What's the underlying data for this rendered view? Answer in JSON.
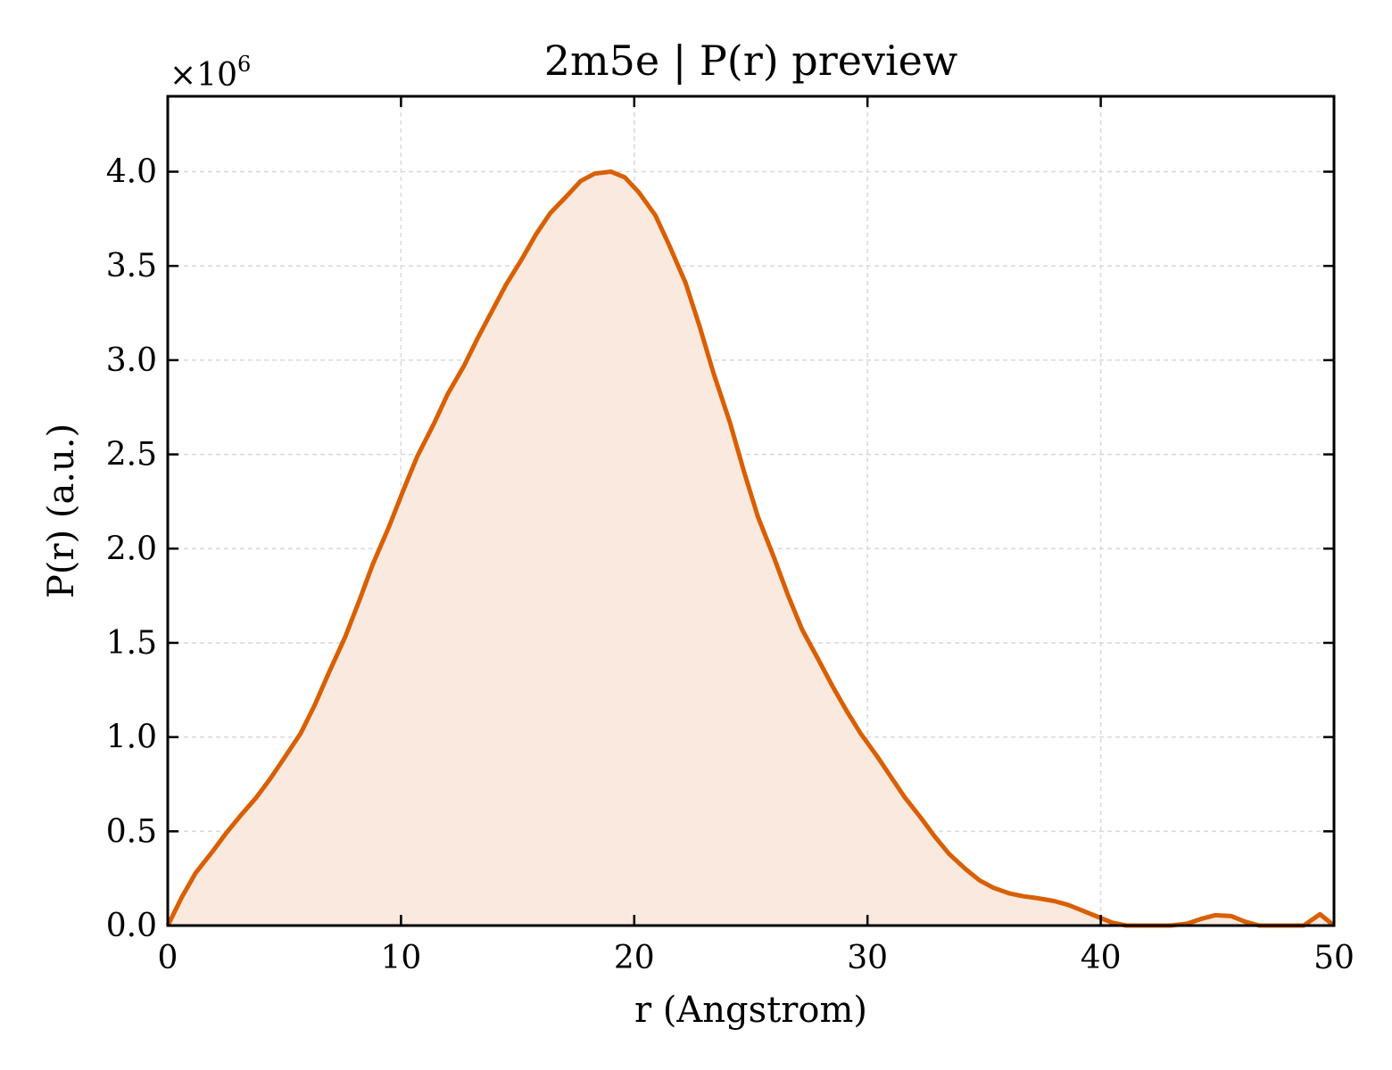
{
  "chart_data": {
    "type": "area",
    "title": "2m5e | P(r) preview",
    "xlabel": "r (Angstrom)",
    "ylabel": "P(r) (a.u.)",
    "y_offset_text": "×10",
    "y_offset_exponent": "6",
    "y_scale": 1000000,
    "xlim": [
      0,
      50
    ],
    "ylim": [
      0,
      4.4
    ],
    "x_ticks": [
      0,
      10,
      20,
      30,
      40,
      50
    ],
    "x_tick_labels": [
      "0",
      "10",
      "20",
      "30",
      "40",
      "50"
    ],
    "y_ticks": [
      0,
      0.5,
      1.0,
      1.5,
      2.0,
      2.5,
      3.0,
      3.5,
      4.0
    ],
    "y_tick_labels": [
      "0.0",
      "0.5",
      "1.0",
      "1.5",
      "2.0",
      "2.5",
      "3.0",
      "3.5",
      "4.0"
    ],
    "grid": true,
    "colors": {
      "line": "#d95f02",
      "fill": "#f9e9de",
      "grid": "#d9d9d9",
      "axes": "#000000"
    },
    "series": [
      {
        "x": [
          0,
          0.6,
          1.2,
          1.9,
          2.5,
          3.1,
          3.8,
          4.4,
          5.0,
          5.7,
          6.3,
          6.9,
          7.6,
          8.2,
          8.8,
          9.5,
          10.1,
          10.7,
          11.4,
          12.0,
          12.7,
          13.3,
          13.9,
          14.5,
          15.2,
          15.8,
          16.4,
          17.1,
          17.7,
          18.3,
          19.0,
          19.6,
          20.2,
          20.9,
          21.5,
          22.2,
          22.8,
          23.4,
          24.1,
          24.7,
          25.3,
          26.0,
          26.6,
          27.2,
          27.9,
          28.5,
          29.1,
          29.7,
          30.4,
          31.0,
          31.6,
          32.3,
          32.9,
          33.5,
          34.2,
          34.8,
          35.4,
          36.1,
          36.7,
          37.3,
          38.0,
          38.6,
          39.2,
          39.9,
          40.5,
          41.1,
          41.8,
          42.4,
          43.0,
          43.7,
          44.3,
          44.9,
          45.6,
          46.2,
          46.8,
          47.5,
          48.1,
          48.7,
          49.4,
          50.0
        ],
        "y": [
          0.0,
          0.15,
          0.28,
          0.39,
          0.49,
          0.58,
          0.68,
          0.78,
          0.89,
          1.02,
          1.17,
          1.34,
          1.53,
          1.72,
          1.92,
          2.12,
          2.31,
          2.49,
          2.66,
          2.82,
          2.97,
          3.12,
          3.26,
          3.4,
          3.54,
          3.67,
          3.78,
          3.87,
          3.95,
          3.99,
          4.0,
          3.97,
          3.89,
          3.77,
          3.61,
          3.41,
          3.18,
          2.93,
          2.67,
          2.41,
          2.17,
          1.95,
          1.75,
          1.57,
          1.41,
          1.27,
          1.14,
          1.02,
          0.9,
          0.79,
          0.68,
          0.57,
          0.47,
          0.38,
          0.3,
          0.24,
          0.2,
          0.17,
          0.155,
          0.145,
          0.13,
          0.11,
          0.08,
          0.045,
          0.015,
          0.0,
          0.0,
          0.0,
          0.0,
          0.01,
          0.035,
          0.055,
          0.05,
          0.02,
          0.0,
          0.0,
          0.0,
          0.0,
          0.06,
          0.0
        ]
      }
    ]
  }
}
